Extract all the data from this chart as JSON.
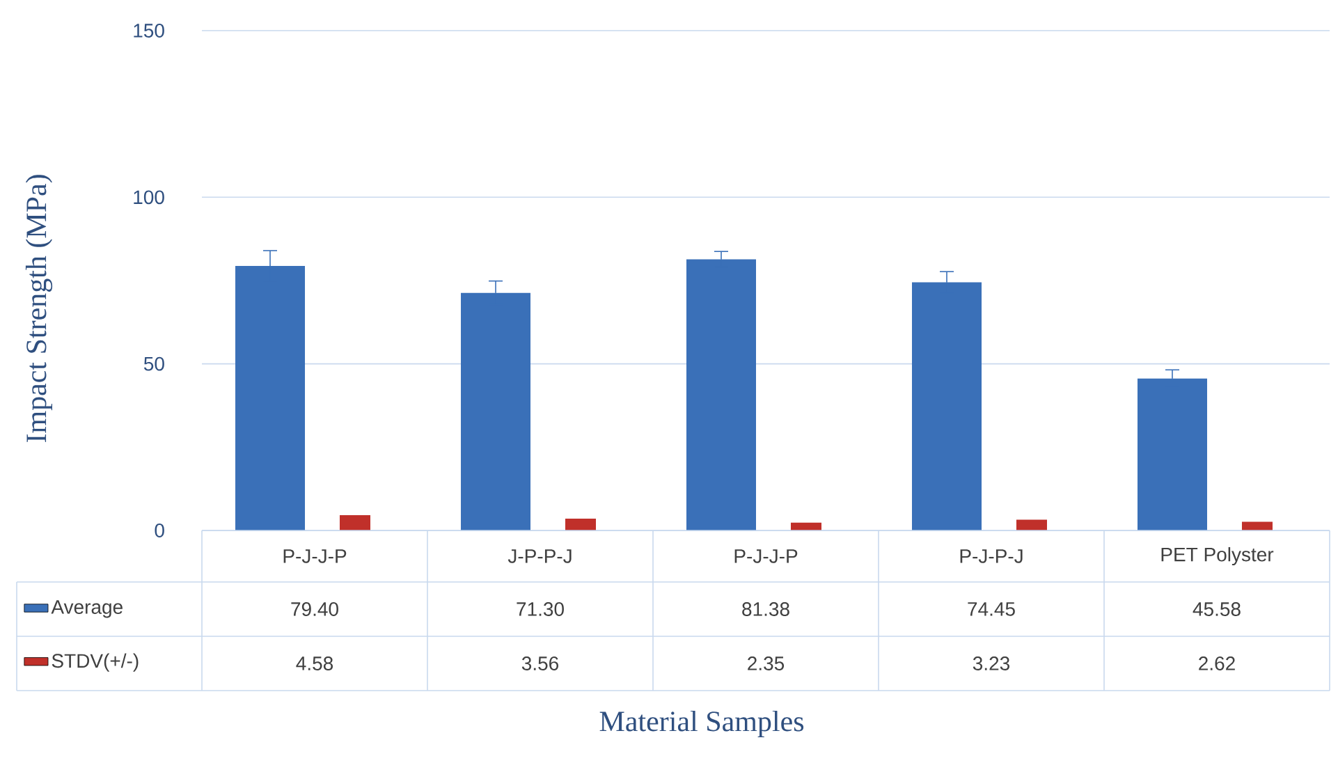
{
  "chart_data": {
    "type": "bar",
    "xlabel": "Material Samples",
    "ylabel": "Impact Strength (MPa)",
    "categories": [
      "P-J-J-P",
      "J-P-P-J",
      "P-J-J-P",
      "P-J-P-J",
      "PET Polyster"
    ],
    "series": [
      {
        "name": "Average",
        "color": "#3a70b8",
        "values": [
          79.4,
          71.3,
          81.38,
          74.45,
          45.58
        ],
        "errors": [
          4.58,
          3.56,
          2.35,
          3.23,
          2.62
        ],
        "value_labels": [
          "79.40",
          "71.30",
          "81.38",
          "74.45",
          "45.58"
        ]
      },
      {
        "name": "STDV(+/-)",
        "color": "#c0302a",
        "values": [
          4.58,
          3.56,
          2.35,
          3.23,
          2.62
        ],
        "value_labels": [
          "4.58",
          "3.56",
          "2.35",
          "3.23",
          "2.62"
        ]
      }
    ],
    "ylim": [
      0,
      150
    ],
    "yticks": [
      0,
      50,
      100,
      150
    ],
    "grid": "y",
    "legend": "bottom"
  }
}
